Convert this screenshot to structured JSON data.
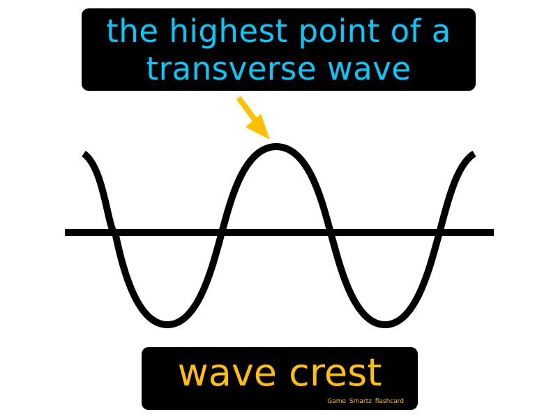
{
  "definition": {
    "line1": "the highest point of a",
    "line2": "transverse wave"
  },
  "term": "wave crest",
  "brand": "Game Smartz flashcard",
  "colors": {
    "definition_text": "#00ccff",
    "term_text": "#ffc000",
    "arrow": "#ffc000",
    "wave": "#000000",
    "box_background": "#000000"
  }
}
